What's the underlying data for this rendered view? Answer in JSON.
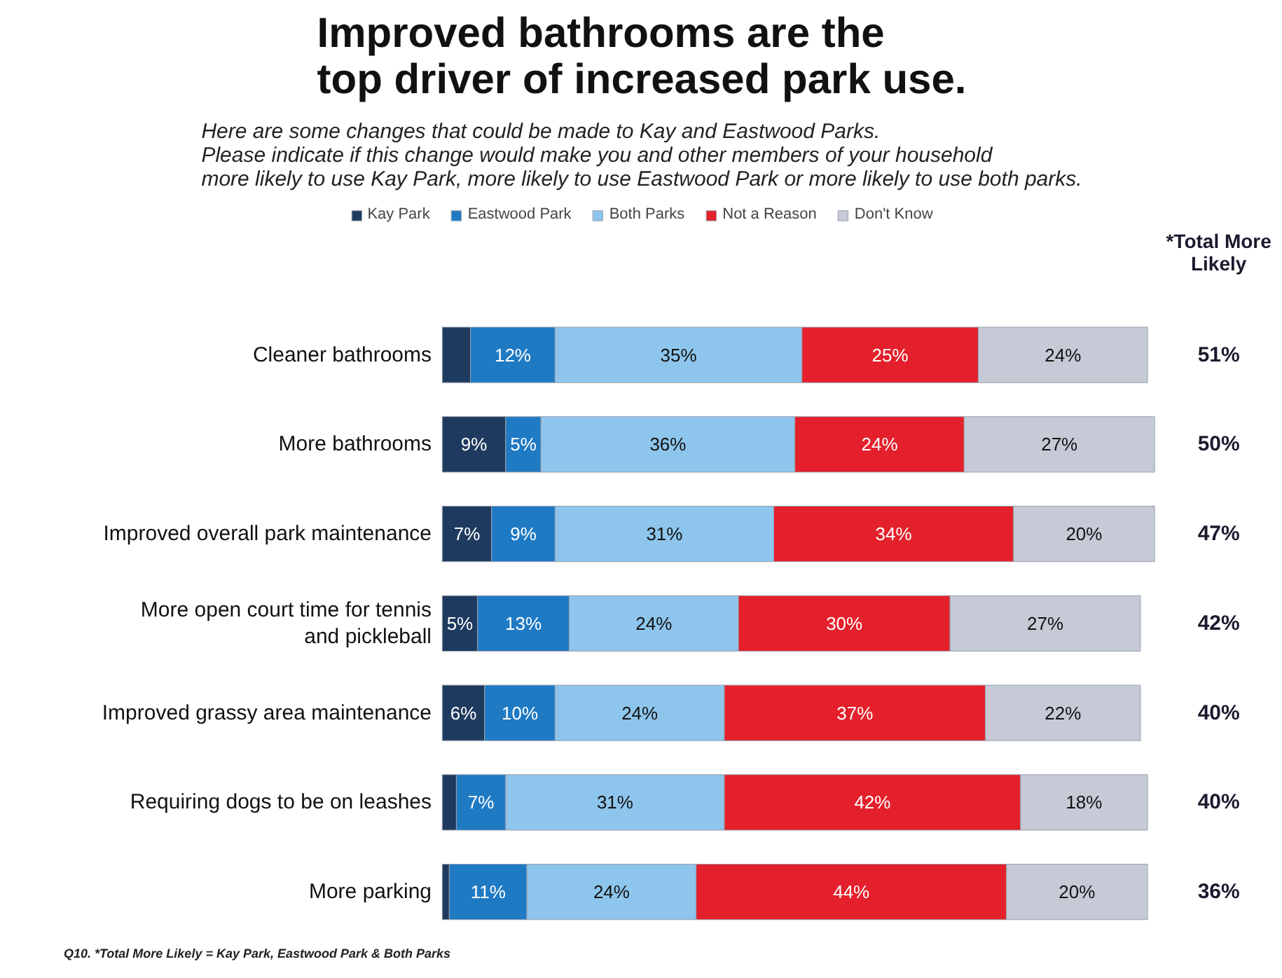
{
  "chart_data": {
    "type": "bar",
    "orientation": "horizontal",
    "stacked": true,
    "title": "Improved bathrooms are the\ntop driver of increased park use.",
    "subtitle": "Here are some changes that could be made to Kay and Eastwood Parks.\nPlease indicate if this change would make you and other members of your household\nmore likely to use Kay Park, more likely to use Eastwood Park or more likely to use both parks.",
    "categories": [
      "Cleaner bathrooms",
      "More bathrooms",
      "Improved overall park maintenance",
      "More open court time for tennis\nand pickleball",
      "Improved grassy area maintenance",
      "Requiring dogs to be on leashes",
      "More parking"
    ],
    "series": [
      {
        "name": "Kay Park",
        "color": "#1f3a5f",
        "values": [
          4,
          9,
          7,
          5,
          6,
          2,
          1
        ],
        "value_labels": [
          null,
          "9%",
          "7%",
          "5%",
          "6%",
          null,
          null
        ]
      },
      {
        "name": "Eastwood Park",
        "color": "#1f7ac4",
        "values": [
          12,
          5,
          9,
          13,
          10,
          7,
          11
        ],
        "value_labels": [
          "12%",
          "5%",
          "9%",
          "13%",
          "10%",
          "7%",
          "11%"
        ]
      },
      {
        "name": "Both Parks",
        "color": "#8ec5ec",
        "values": [
          35,
          36,
          31,
          24,
          24,
          31,
          24
        ],
        "value_labels": [
          "35%",
          "36%",
          "31%",
          "24%",
          "24%",
          "31%",
          "24%"
        ]
      },
      {
        "name": "Not a Reason",
        "color": "#e3202b",
        "values": [
          25,
          24,
          34,
          30,
          37,
          42,
          44
        ],
        "value_labels": [
          "25%",
          "24%",
          "34%",
          "30%",
          "37%",
          "42%",
          "44%"
        ]
      },
      {
        "name": "Don't Know",
        "color": "#c5cad6",
        "values": [
          24,
          27,
          20,
          27,
          22,
          18,
          20
        ],
        "value_labels": [
          "24%",
          "27%",
          "20%",
          "27%",
          "22%",
          "18%",
          "20%"
        ]
      }
    ],
    "legend": "top",
    "annotations": [
      "*Total More\nLikely",
      "51%",
      "50%",
      "47%",
      "42%",
      "40%",
      "40%",
      "36%",
      "Q10. *Total More Likely = Kay Park, Eastwood Park & Both Parks"
    ]
  }
}
